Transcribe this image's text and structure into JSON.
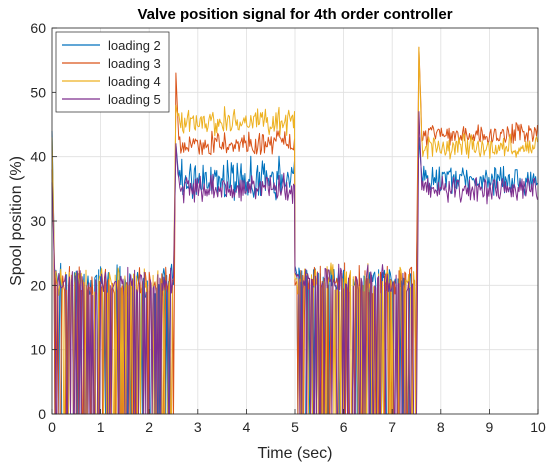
{
  "chart_data": {
    "type": "line",
    "title": "Valve position signal for 4th order controller",
    "xlabel": "Time (sec)",
    "ylabel": "Spool position (%)",
    "xlim": [
      0,
      10
    ],
    "ylim": [
      0,
      60
    ],
    "xticks": [
      0,
      1,
      2,
      3,
      4,
      5,
      6,
      7,
      8,
      9,
      10
    ],
    "yticks": [
      0,
      10,
      20,
      30,
      40,
      50,
      60
    ],
    "grid": true,
    "legend_position": "top-left",
    "series": [
      {
        "name": "loading 2",
        "color": "#0072BD",
        "segments": [
          {
            "t0": 0.0,
            "t1": 2.5,
            "mean": 20.5,
            "noise": 2.2,
            "start": 44,
            "chatter": true
          },
          {
            "t0": 2.55,
            "t1": 5.0,
            "mean": 36.5,
            "noise": 2.6,
            "start": 42,
            "chatter": false
          },
          {
            "t0": 5.0,
            "t1": 7.5,
            "mean": 21.0,
            "noise": 1.8,
            "start": 23,
            "chatter": true
          },
          {
            "t0": 7.55,
            "t1": 10.0,
            "mean": 36.5,
            "noise": 1.8,
            "start": 43,
            "chatter": false
          }
        ]
      },
      {
        "name": "loading 3",
        "color": "#D95319",
        "segments": [
          {
            "t0": 0.0,
            "t1": 2.5,
            "mean": 20.5,
            "noise": 2.0,
            "start": 38,
            "chatter": true
          },
          {
            "t0": 2.55,
            "t1": 5.0,
            "mean": 42.0,
            "noise": 1.5,
            "start": 53,
            "chatter": false
          },
          {
            "t0": 5.0,
            "t1": 7.5,
            "mean": 21.0,
            "noise": 2.0,
            "start": 20,
            "chatter": true
          },
          {
            "t0": 7.55,
            "t1": 10.0,
            "mean": 43.5,
            "noise": 1.3,
            "start": 57,
            "chatter": false
          }
        ]
      },
      {
        "name": "loading 4",
        "color": "#EDB120",
        "segments": [
          {
            "t0": 0.0,
            "t1": 2.5,
            "mean": 20.5,
            "noise": 1.8,
            "start": 43,
            "chatter": true
          },
          {
            "t0": 2.55,
            "t1": 5.0,
            "mean": 45.5,
            "noise": 1.7,
            "start": 48,
            "chatter": false
          },
          {
            "t0": 5.0,
            "t1": 7.5,
            "mean": 21.0,
            "noise": 1.8,
            "start": 21,
            "chatter": true
          },
          {
            "t0": 7.55,
            "t1": 10.0,
            "mean": 41.5,
            "noise": 1.5,
            "start": 57,
            "chatter": false
          }
        ]
      },
      {
        "name": "loading 5",
        "color": "#7E2F8E",
        "segments": [
          {
            "t0": 0.0,
            "t1": 2.5,
            "mean": 20.5,
            "noise": 1.6,
            "start": 36,
            "chatter": true
          },
          {
            "t0": 2.55,
            "t1": 5.0,
            "mean": 35.0,
            "noise": 1.7,
            "start": 42,
            "chatter": false
          },
          {
            "t0": 5.0,
            "t1": 7.5,
            "mean": 21.0,
            "noise": 1.6,
            "start": 22,
            "chatter": true
          },
          {
            "t0": 7.55,
            "t1": 10.0,
            "mean": 35.0,
            "noise": 1.6,
            "start": 47,
            "chatter": false
          }
        ]
      }
    ]
  }
}
